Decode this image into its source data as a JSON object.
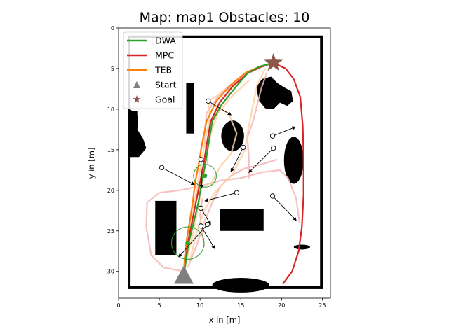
{
  "chart_data": {
    "type": "line",
    "title": "Map: map1 Obstacles: 10",
    "xlabel": "x in [m]",
    "ylabel": "y in [m]",
    "xlim": [
      0,
      26
    ],
    "ylim": [
      33.3,
      0
    ],
    "y_inverted": true,
    "xticks": [
      0,
      5,
      10,
      15,
      20,
      25
    ],
    "yticks": [
      0,
      5,
      10,
      15,
      20,
      25,
      30
    ],
    "legend_position": "top-left",
    "grid": false,
    "start": {
      "label": "Start",
      "x": 8.0,
      "y": 30.5,
      "color": "#7f7f7f"
    },
    "goal": {
      "label": "Goal",
      "x": 19.0,
      "y": 4.3,
      "color": "#8c564b"
    },
    "series": [
      {
        "name": "DWA",
        "color": "#2ca02c",
        "points": [
          [
            8,
            30.5
          ],
          [
            8.3,
            28.5
          ],
          [
            8.6,
            26.5
          ],
          [
            9.2,
            24
          ],
          [
            9.8,
            21.5
          ],
          [
            10.2,
            19
          ],
          [
            10.6,
            17
          ],
          [
            11,
            14.5
          ],
          [
            11.5,
            11.5
          ],
          [
            12.6,
            9.5
          ],
          [
            14.2,
            7.5
          ],
          [
            15.8,
            5.6
          ],
          [
            17.2,
            4.8
          ],
          [
            18.2,
            4.5
          ],
          [
            19,
            4.3
          ]
        ]
      },
      {
        "name": "MPC",
        "color": "#d62728",
        "points": [
          [
            8,
            30.5
          ],
          [
            8.2,
            28.5
          ],
          [
            8.5,
            26.5
          ],
          [
            9,
            24
          ],
          [
            9.5,
            21.5
          ],
          [
            10,
            19
          ],
          [
            10.4,
            17
          ],
          [
            10.8,
            14.5
          ],
          [
            11.3,
            11.5
          ],
          [
            12.4,
            9.2
          ],
          [
            14,
            7.2
          ],
          [
            15.8,
            5.6
          ],
          [
            17.5,
            4.8
          ],
          [
            19,
            4.3
          ],
          [
            20.5,
            5
          ],
          [
            21.5,
            6.3
          ],
          [
            22.3,
            8.5
          ],
          [
            22.6,
            12
          ],
          [
            22.7,
            16
          ],
          [
            22.7,
            20.5
          ],
          [
            22.5,
            24.5
          ],
          [
            22.1,
            27.5
          ],
          [
            21.3,
            30
          ],
          [
            20.2,
            31.5
          ]
        ]
      },
      {
        "name": "TEB",
        "color": "#ff7f0e",
        "points": [
          [
            8,
            30.5
          ],
          [
            8.1,
            28.5
          ],
          [
            8.3,
            26.5
          ],
          [
            8.7,
            24
          ],
          [
            9.1,
            21.5
          ],
          [
            9.4,
            19
          ],
          [
            9.8,
            17
          ],
          [
            10.2,
            14.5
          ],
          [
            10.8,
            11.5
          ],
          [
            12,
            9
          ],
          [
            13.8,
            7
          ],
          [
            15.6,
            5.5
          ],
          [
            17.5,
            4.7
          ],
          [
            19,
            4.3
          ]
        ]
      }
    ],
    "ghost_trajectories": [
      {
        "color": "#f4b6b6",
        "points": [
          [
            8,
            30
          ],
          [
            5.5,
            29.5
          ],
          [
            4,
            28
          ],
          [
            3.4,
            24.5
          ],
          [
            3.5,
            21.5
          ],
          [
            5,
            20.3
          ],
          [
            7.5,
            20
          ],
          [
            10,
            19.5
          ],
          [
            12.5,
            18.8
          ],
          [
            15,
            18.5
          ],
          [
            17.5,
            17.8
          ],
          [
            19.8,
            17.5
          ],
          [
            20.8,
            18.5
          ],
          [
            21.8,
            21
          ],
          [
            22.2,
            24
          ]
        ]
      },
      {
        "color": "#f4b6b6",
        "points": [
          [
            8.5,
            29.5
          ],
          [
            9.5,
            27
          ],
          [
            10.5,
            24
          ],
          [
            11.5,
            21.5
          ],
          [
            12.5,
            19.5
          ],
          [
            13.8,
            18.2
          ],
          [
            15.5,
            17.3
          ],
          [
            17.5,
            16.8
          ],
          [
            19.5,
            16.2
          ]
        ]
      },
      {
        "color": "#f4b6b6",
        "points": [
          [
            10.5,
            27
          ],
          [
            10.2,
            24.8
          ],
          [
            10,
            23
          ],
          [
            10.3,
            21
          ]
        ]
      },
      {
        "color": "#f4b6b6",
        "points": [
          [
            16,
            18.5
          ],
          [
            16,
            16
          ],
          [
            15.8,
            13.5
          ],
          [
            16.5,
            11.5
          ],
          [
            17,
            9.5
          ],
          [
            17.5,
            7.5
          ],
          [
            18.2,
            5.5
          ]
        ]
      },
      {
        "color": "#f4b6b6",
        "points": [
          [
            11,
            17
          ],
          [
            10.5,
            13.5
          ],
          [
            10.8,
            10.5
          ],
          [
            12.5,
            8
          ],
          [
            14.5,
            6.5
          ]
        ]
      },
      {
        "color": "#fdd0a2",
        "points": [
          [
            8.8,
            28.5
          ],
          [
            9.5,
            25.5
          ],
          [
            10.5,
            22.5
          ],
          [
            11.8,
            20.3
          ],
          [
            12.8,
            19.2
          ],
          [
            14,
            18
          ],
          [
            15.5,
            15
          ],
          [
            16,
            12
          ],
          [
            16.5,
            9.5
          ],
          [
            17,
            7
          ],
          [
            18,
            5
          ]
        ]
      },
      {
        "color": "#fdd0a2",
        "points": [
          [
            8.2,
            29
          ],
          [
            8.6,
            26
          ],
          [
            9,
            23
          ],
          [
            9.6,
            20
          ],
          [
            10.1,
            17
          ],
          [
            10.6,
            14
          ],
          [
            11.2,
            11
          ],
          [
            11,
            9
          ],
          [
            12.8,
            8
          ],
          [
            15,
            6.3
          ]
        ]
      },
      {
        "color": "#fdd0a2",
        "points": [
          [
            8.4,
            28.5
          ],
          [
            9.2,
            25
          ],
          [
            9.8,
            22
          ],
          [
            10.3,
            19
          ],
          [
            10.8,
            16
          ],
          [
            11.3,
            13
          ],
          [
            12.2,
            10.5
          ],
          [
            13.8,
            8.5
          ],
          [
            16,
            6.5
          ]
        ]
      },
      {
        "color": "#fdd0a2",
        "points": [
          [
            11.2,
            19.5
          ],
          [
            12.5,
            17
          ],
          [
            13.8,
            15.5
          ],
          [
            14.5,
            13
          ],
          [
            13.5,
            10.5
          ],
          [
            11.5,
            9.5
          ]
        ]
      }
    ],
    "dynamic_obstacles": [
      {
        "x": 11.0,
        "y": 9.0,
        "dx": 13.8,
        "dy": 10.7
      },
      {
        "x": 18.9,
        "y": 13.3,
        "dx": 21.7,
        "dy": 12.2
      },
      {
        "x": 15.3,
        "y": 14.7,
        "dx": 13.8,
        "dy": 17.7
      },
      {
        "x": 19.0,
        "y": 14.8,
        "dx": 16.0,
        "dy": 17.8
      },
      {
        "x": 5.3,
        "y": 17.2,
        "dx": 9.3,
        "dy": 19.3
      },
      {
        "x": 10.1,
        "y": 16.2,
        "dx": 10.2,
        "dy": 19.7
      },
      {
        "x": 14.5,
        "y": 20.3,
        "dx": 10.6,
        "dy": 21.3
      },
      {
        "x": 18.9,
        "y": 20.7,
        "dx": 21.8,
        "dy": 23.7
      },
      {
        "x": 10.1,
        "y": 22.2,
        "dx": 11.3,
        "dy": 24.2
      },
      {
        "x": 10.9,
        "y": 24.2,
        "dx": 7.4,
        "dy": 28.2
      },
      {
        "x": 10.1,
        "y": 24.4,
        "dx": 11.8,
        "dy": 27.2
      }
    ],
    "static_obstacles": {
      "border": {
        "x0": 1.3,
        "y0": 1.1,
        "x1": 24.9,
        "y1": 32.0
      },
      "rectangles": [
        [
          8.3,
          6.8,
          9.3,
          13.0
        ],
        [
          4.5,
          21.3,
          7.1,
          28.0
        ],
        [
          12.4,
          22.3,
          17.8,
          25.0
        ],
        [
          1.3,
          10.2,
          2.3,
          15.8
        ]
      ],
      "ellipses": [
        [
          14.0,
          13.3,
          1.4,
          1.9
        ],
        [
          21.5,
          16.3,
          1.2,
          2.9
        ],
        [
          22.5,
          27.0,
          1.0,
          0.3
        ],
        [
          15.0,
          31.7,
          3.5,
          0.9
        ]
      ],
      "blobs": [
        [
          [
            16.9,
            7.3
          ],
          [
            17.6,
            6.3
          ],
          [
            18.7,
            6.0
          ],
          [
            19.5,
            6.8
          ],
          [
            20.3,
            7.3
          ],
          [
            21.2,
            7.8
          ],
          [
            21.4,
            9.0
          ],
          [
            20.7,
            9.6
          ],
          [
            19.8,
            9.2
          ],
          [
            19.0,
            10.0
          ],
          [
            18.0,
            9.9
          ],
          [
            17.2,
            8.9
          ]
        ],
        [
          [
            1.4,
            10.0
          ],
          [
            2.4,
            10.8
          ],
          [
            2.3,
            12.5
          ],
          [
            3.0,
            13.6
          ],
          [
            3.4,
            14.8
          ],
          [
            2.5,
            15.9
          ],
          [
            1.4,
            15.9
          ]
        ]
      ]
    },
    "footprints": [
      {
        "x": 10.6,
        "y": 18.2,
        "r": 1.4,
        "color": "#2ca02c"
      },
      {
        "x": 8.5,
        "y": 26.5,
        "r": 2.0,
        "color": "#2ca02c"
      }
    ]
  }
}
